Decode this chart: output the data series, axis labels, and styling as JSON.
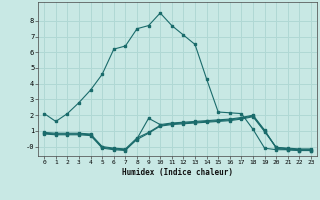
{
  "xlabel": "Humidex (Indice chaleur)",
  "bg_color": "#c8e8e4",
  "grid_color": "#b0d8d4",
  "line_color": "#1a6b6b",
  "xlim": [
    -0.5,
    23.5
  ],
  "ylim": [
    -0.6,
    9.2
  ],
  "yticks": [
    0,
    1,
    2,
    3,
    4,
    5,
    6,
    7,
    8
  ],
  "ytick_labels": [
    "-0",
    "1",
    "2",
    "3",
    "4",
    "5",
    "6",
    "7",
    "8"
  ],
  "xticks": [
    0,
    1,
    2,
    3,
    4,
    5,
    6,
    7,
    8,
    9,
    10,
    11,
    12,
    13,
    14,
    15,
    16,
    17,
    18,
    19,
    20,
    21,
    22,
    23
  ],
  "curve1_x": [
    0,
    1,
    2,
    3,
    4,
    5,
    6,
    7,
    8,
    9,
    10,
    11,
    12,
    13,
    14,
    15,
    16,
    17,
    18,
    19,
    20,
    21,
    22,
    23
  ],
  "curve1_y": [
    2.1,
    1.6,
    2.1,
    2.8,
    3.6,
    4.6,
    6.2,
    6.4,
    7.5,
    7.7,
    8.5,
    7.7,
    7.1,
    6.5,
    4.3,
    2.2,
    2.15,
    2.1,
    1.1,
    -0.1,
    -0.2,
    -0.2,
    -0.25,
    -0.25
  ],
  "curve2_x": [
    0,
    1,
    2,
    3,
    4,
    5,
    6,
    7,
    8,
    9,
    10,
    11,
    12,
    13,
    14,
    15,
    16,
    17,
    18,
    19,
    20,
    21,
    22,
    23
  ],
  "curve2_y": [
    0.8,
    0.75,
    0.75,
    0.75,
    0.7,
    -0.1,
    -0.2,
    -0.25,
    0.5,
    1.8,
    1.4,
    1.5,
    1.55,
    1.6,
    1.65,
    1.7,
    1.75,
    1.85,
    2.0,
    1.05,
    -0.1,
    -0.2,
    -0.25,
    -0.25
  ],
  "curve3_x": [
    0,
    1,
    2,
    3,
    4,
    5,
    6,
    7,
    8,
    9,
    10,
    11,
    12,
    13,
    14,
    15,
    16,
    17,
    18,
    19,
    20,
    21,
    22,
    23
  ],
  "curve3_y": [
    0.85,
    0.8,
    0.8,
    0.8,
    0.75,
    -0.05,
    -0.15,
    -0.2,
    0.45,
    0.85,
    1.3,
    1.4,
    1.45,
    1.5,
    1.55,
    1.6,
    1.65,
    1.75,
    1.9,
    0.95,
    -0.05,
    -0.15,
    -0.2,
    -0.2
  ],
  "curve4_x": [
    0,
    1,
    2,
    3,
    4,
    5,
    6,
    7,
    8,
    9,
    10,
    11,
    12,
    13,
    14,
    15,
    16,
    17,
    18,
    19,
    20,
    21,
    22,
    23
  ],
  "curve4_y": [
    0.9,
    0.85,
    0.85,
    0.85,
    0.8,
    0.0,
    -0.1,
    -0.15,
    0.55,
    0.9,
    1.35,
    1.45,
    1.5,
    1.55,
    1.6,
    1.65,
    1.7,
    1.8,
    1.95,
    1.0,
    -0.05,
    -0.1,
    -0.15,
    -0.15
  ]
}
